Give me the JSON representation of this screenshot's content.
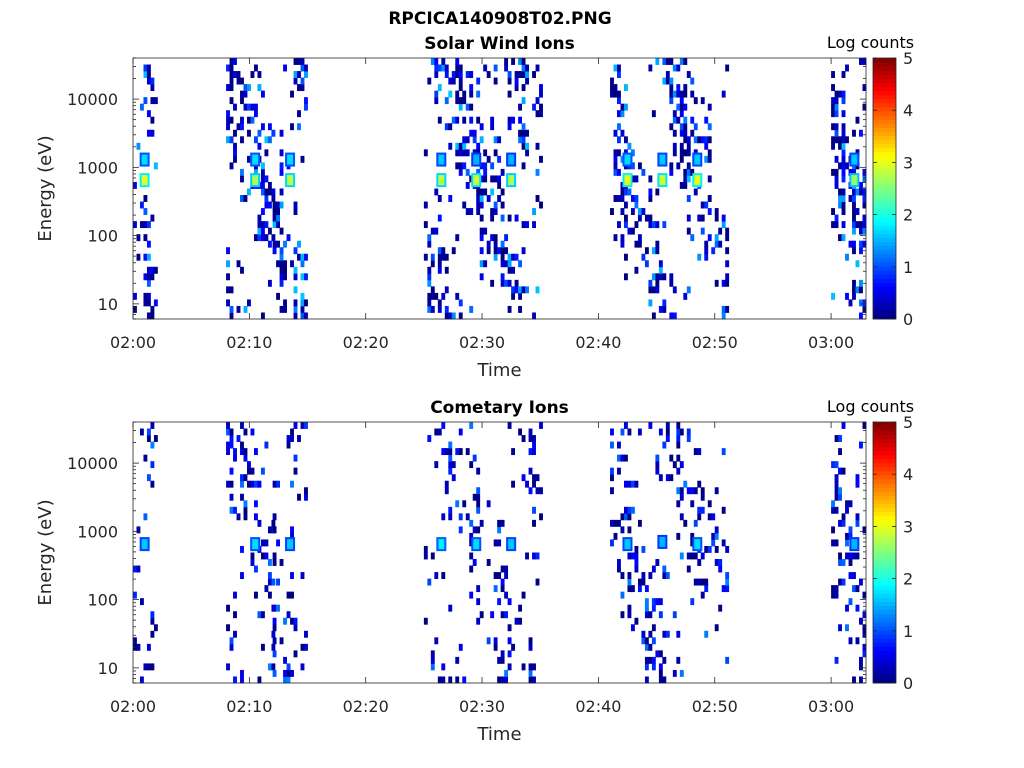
{
  "figure": {
    "title": "RPCICA140908T02.PNG"
  },
  "colormap": {
    "name": "jet",
    "min": 0,
    "max": 5
  },
  "chart_data": [
    {
      "type": "heatmap",
      "title": "Solar Wind Ions",
      "xlabel": "Time",
      "ylabel": "Energy (eV)",
      "xlim": [
        "02:00",
        "03:03"
      ],
      "ylim": [
        6,
        40000
      ],
      "yscale": "log",
      "xticks": [
        "02:00",
        "02:10",
        "02:20",
        "02:30",
        "02:40",
        "02:50",
        "03:00"
      ],
      "yticks": [
        "10",
        "100",
        "1000",
        "10000"
      ],
      "grid": false,
      "colorbar": {
        "label": "Log counts",
        "ticks": [
          "0",
          "1",
          "2",
          "3",
          "4",
          "5"
        ],
        "placement": "right"
      },
      "bursts": [
        {
          "start": "02:00",
          "end": "02:02",
          "density": 0.55
        },
        {
          "start": "02:08",
          "end": "02:12",
          "density": 0.5
        },
        {
          "start": "02:12",
          "end": "02:15",
          "density": 0.6
        },
        {
          "start": "02:25",
          "end": "02:35",
          "density": 0.5
        },
        {
          "start": "02:41",
          "end": "02:51",
          "density": 0.55
        },
        {
          "start": "03:00",
          "end": "03:03",
          "density": 0.6
        }
      ],
      "peaks": [
        {
          "time": "02:01",
          "energy_eV": 650,
          "log_counts": 3.0
        },
        {
          "time": "02:01",
          "energy_eV": 1300,
          "log_counts": 1.7
        },
        {
          "time": "02:10.5",
          "energy_eV": 650,
          "log_counts": 2.7
        },
        {
          "time": "02:10.5",
          "energy_eV": 1300,
          "log_counts": 1.7
        },
        {
          "time": "02:13.5",
          "energy_eV": 650,
          "log_counts": 2.8
        },
        {
          "time": "02:13.5",
          "energy_eV": 1300,
          "log_counts": 1.7
        },
        {
          "time": "02:26.5",
          "energy_eV": 650,
          "log_counts": 2.8
        },
        {
          "time": "02:26.5",
          "energy_eV": 1300,
          "log_counts": 1.6
        },
        {
          "time": "02:29.5",
          "energy_eV": 650,
          "log_counts": 2.9
        },
        {
          "time": "02:29.5",
          "energy_eV": 1300,
          "log_counts": 1.5
        },
        {
          "time": "02:32.5",
          "energy_eV": 650,
          "log_counts": 2.7
        },
        {
          "time": "02:32.5",
          "energy_eV": 1300,
          "log_counts": 1.5
        },
        {
          "time": "02:42.5",
          "energy_eV": 650,
          "log_counts": 3.0
        },
        {
          "time": "02:42.5",
          "energy_eV": 1300,
          "log_counts": 1.7
        },
        {
          "time": "02:45.5",
          "energy_eV": 650,
          "log_counts": 2.9
        },
        {
          "time": "02:45.5",
          "energy_eV": 1300,
          "log_counts": 1.6
        },
        {
          "time": "02:48.5",
          "energy_eV": 650,
          "log_counts": 3.0
        },
        {
          "time": "02:48.5",
          "energy_eV": 1300,
          "log_counts": 1.6
        },
        {
          "time": "03:02",
          "energy_eV": 650,
          "log_counts": 2.6
        },
        {
          "time": "03:02",
          "energy_eV": 1300,
          "log_counts": 1.6
        }
      ]
    },
    {
      "type": "heatmap",
      "title": "Cometary Ions",
      "xlabel": "Time",
      "ylabel": "Energy (eV)",
      "xlim": [
        "02:00",
        "03:03"
      ],
      "ylim": [
        6,
        40000
      ],
      "yscale": "log",
      "xticks": [
        "02:00",
        "02:10",
        "02:20",
        "02:30",
        "02:40",
        "02:50",
        "03:00"
      ],
      "yticks": [
        "10",
        "100",
        "1000",
        "10000"
      ],
      "grid": false,
      "colorbar": {
        "label": "Log counts",
        "ticks": [
          "0",
          "1",
          "2",
          "3",
          "4",
          "5"
        ],
        "placement": "right"
      },
      "bursts": [
        {
          "start": "02:00",
          "end": "02:02",
          "density": 0.35
        },
        {
          "start": "02:08",
          "end": "02:12",
          "density": 0.35
        },
        {
          "start": "02:12",
          "end": "02:15",
          "density": 0.45
        },
        {
          "start": "02:25",
          "end": "02:35",
          "density": 0.3
        },
        {
          "start": "02:41",
          "end": "02:51",
          "density": 0.35
        },
        {
          "start": "03:00",
          "end": "03:03",
          "density": 0.45
        }
      ],
      "peaks": [
        {
          "time": "02:01",
          "energy_eV": 650,
          "log_counts": 1.6
        },
        {
          "time": "02:10.5",
          "energy_eV": 650,
          "log_counts": 1.7
        },
        {
          "time": "02:13.5",
          "energy_eV": 650,
          "log_counts": 1.6
        },
        {
          "time": "02:26.5",
          "energy_eV": 650,
          "log_counts": 1.8
        },
        {
          "time": "02:29.5",
          "energy_eV": 650,
          "log_counts": 1.7
        },
        {
          "time": "02:32.5",
          "energy_eV": 650,
          "log_counts": 1.6
        },
        {
          "time": "02:42.5",
          "energy_eV": 650,
          "log_counts": 1.6
        },
        {
          "time": "02:45.5",
          "energy_eV": 700,
          "log_counts": 1.5
        },
        {
          "time": "02:48.5",
          "energy_eV": 650,
          "log_counts": 1.7
        },
        {
          "time": "03:02",
          "energy_eV": 650,
          "log_counts": 1.5
        }
      ]
    }
  ]
}
